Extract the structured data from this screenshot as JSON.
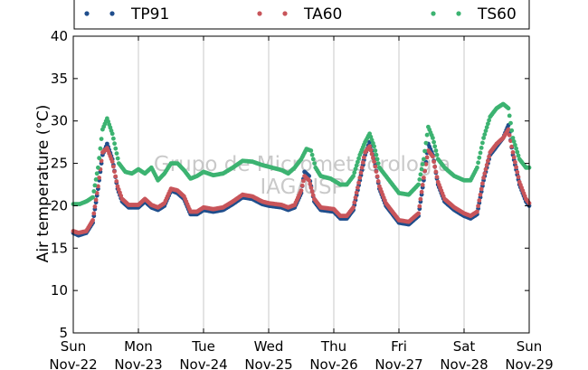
{
  "chart_data": {
    "type": "scatter",
    "ylabel": "Air temperature (°C)",
    "ylim": [
      5,
      40
    ],
    "yticks": [
      5,
      10,
      15,
      20,
      25,
      30,
      35,
      40
    ],
    "xlim": [
      0,
      7
    ],
    "xticks": [
      {
        "x": 0,
        "day": "Sun",
        "date": "Nov-22"
      },
      {
        "x": 1,
        "day": "Mon",
        "date": "Nov-23"
      },
      {
        "x": 2,
        "day": "Tue",
        "date": "Nov-24"
      },
      {
        "x": 3,
        "day": "Wed",
        "date": "Nov-25"
      },
      {
        "x": 4,
        "day": "Thu",
        "date": "Nov-26"
      },
      {
        "x": 5,
        "day": "Fri",
        "date": "Nov-27"
      },
      {
        "x": 6,
        "day": "Sat",
        "date": "Nov-28"
      },
      {
        "x": 7,
        "day": "Sun",
        "date": "Nov-29"
      }
    ],
    "grid": "vertical",
    "legend_position": "top",
    "watermark": [
      "Grupo de Micrometeorologia",
      "IAG/USP"
    ],
    "series": [
      {
        "name": "TP91",
        "color": "#1f4e8c",
        "points": [
          [
            0,
            16.8
          ],
          [
            0.08,
            16.5
          ],
          [
            0.2,
            16.8
          ],
          [
            0.3,
            18.0
          ],
          [
            0.38,
            22.0
          ],
          [
            0.45,
            26.0
          ],
          [
            0.52,
            27.3
          ],
          [
            0.6,
            25.5
          ],
          [
            0.68,
            22.0
          ],
          [
            0.75,
            20.5
          ],
          [
            0.85,
            19.8
          ],
          [
            1.0,
            19.8
          ],
          [
            1.1,
            20.5
          ],
          [
            1.2,
            19.8
          ],
          [
            1.3,
            19.5
          ],
          [
            1.4,
            20.0
          ],
          [
            1.5,
            21.8
          ],
          [
            1.6,
            21.5
          ],
          [
            1.7,
            20.8
          ],
          [
            1.8,
            19.0
          ],
          [
            1.9,
            19.0
          ],
          [
            2.0,
            19.5
          ],
          [
            2.15,
            19.3
          ],
          [
            2.3,
            19.5
          ],
          [
            2.45,
            20.2
          ],
          [
            2.6,
            21.0
          ],
          [
            2.75,
            20.8
          ],
          [
            2.9,
            20.2
          ],
          [
            3.0,
            20.0
          ],
          [
            3.2,
            19.8
          ],
          [
            3.3,
            19.5
          ],
          [
            3.4,
            19.8
          ],
          [
            3.5,
            21.5
          ],
          [
            3.55,
            24.0
          ],
          [
            3.62,
            23.5
          ],
          [
            3.7,
            20.5
          ],
          [
            3.8,
            19.5
          ],
          [
            4.0,
            19.3
          ],
          [
            4.1,
            18.5
          ],
          [
            4.2,
            18.5
          ],
          [
            4.3,
            19.5
          ],
          [
            4.4,
            23.0
          ],
          [
            4.48,
            26.0
          ],
          [
            4.55,
            27.5
          ],
          [
            4.62,
            25.5
          ],
          [
            4.7,
            22.0
          ],
          [
            4.8,
            20.0
          ],
          [
            4.9,
            19.0
          ],
          [
            5.0,
            18.0
          ],
          [
            5.15,
            17.8
          ],
          [
            5.3,
            18.8
          ],
          [
            5.38,
            23.0
          ],
          [
            5.45,
            27.3
          ],
          [
            5.52,
            26.0
          ],
          [
            5.6,
            22.5
          ],
          [
            5.7,
            20.5
          ],
          [
            5.85,
            19.5
          ],
          [
            6.0,
            18.8
          ],
          [
            6.1,
            18.5
          ],
          [
            6.2,
            19.0
          ],
          [
            6.3,
            23.0
          ],
          [
            6.4,
            26.0
          ],
          [
            6.5,
            27.0
          ],
          [
            6.6,
            28.0
          ],
          [
            6.68,
            29.5
          ],
          [
            6.75,
            26.0
          ],
          [
            6.85,
            22.5
          ],
          [
            6.95,
            20.5
          ],
          [
            7.0,
            20.0
          ]
        ]
      },
      {
        "name": "TA60",
        "color": "#c8555a",
        "points": [
          [
            0,
            17.0
          ],
          [
            0.08,
            16.8
          ],
          [
            0.2,
            17.0
          ],
          [
            0.3,
            18.3
          ],
          [
            0.38,
            22.3
          ],
          [
            0.45,
            26.3
          ],
          [
            0.52,
            26.8
          ],
          [
            0.6,
            25.2
          ],
          [
            0.68,
            22.3
          ],
          [
            0.75,
            20.8
          ],
          [
            0.85,
            20.1
          ],
          [
            1.0,
            20.1
          ],
          [
            1.1,
            20.8
          ],
          [
            1.2,
            20.1
          ],
          [
            1.3,
            19.8
          ],
          [
            1.4,
            20.3
          ],
          [
            1.5,
            22.0
          ],
          [
            1.6,
            21.8
          ],
          [
            1.7,
            21.1
          ],
          [
            1.8,
            19.3
          ],
          [
            1.9,
            19.3
          ],
          [
            2.0,
            19.8
          ],
          [
            2.15,
            19.6
          ],
          [
            2.3,
            19.8
          ],
          [
            2.45,
            20.5
          ],
          [
            2.6,
            21.3
          ],
          [
            2.75,
            21.1
          ],
          [
            2.9,
            20.5
          ],
          [
            3.0,
            20.3
          ],
          [
            3.2,
            20.1
          ],
          [
            3.3,
            19.8
          ],
          [
            3.4,
            20.1
          ],
          [
            3.5,
            21.8
          ],
          [
            3.55,
            23.5
          ],
          [
            3.62,
            23.0
          ],
          [
            3.7,
            20.8
          ],
          [
            3.8,
            19.8
          ],
          [
            4.0,
            19.6
          ],
          [
            4.1,
            18.8
          ],
          [
            4.2,
            18.8
          ],
          [
            4.3,
            19.8
          ],
          [
            4.4,
            23.3
          ],
          [
            4.48,
            26.3
          ],
          [
            4.55,
            27.0
          ],
          [
            4.62,
            25.2
          ],
          [
            4.7,
            22.3
          ],
          [
            4.8,
            20.3
          ],
          [
            4.9,
            19.3
          ],
          [
            5.0,
            18.3
          ],
          [
            5.15,
            18.1
          ],
          [
            5.3,
            19.1
          ],
          [
            5.38,
            23.3
          ],
          [
            5.45,
            26.5
          ],
          [
            5.52,
            25.8
          ],
          [
            5.6,
            22.8
          ],
          [
            5.7,
            20.8
          ],
          [
            5.85,
            19.8
          ],
          [
            6.0,
            19.1
          ],
          [
            6.1,
            18.8
          ],
          [
            6.2,
            19.3
          ],
          [
            6.3,
            23.3
          ],
          [
            6.4,
            26.3
          ],
          [
            6.5,
            27.3
          ],
          [
            6.6,
            28.0
          ],
          [
            6.68,
            29.0
          ],
          [
            6.75,
            26.3
          ],
          [
            6.85,
            22.8
          ],
          [
            6.95,
            20.8
          ],
          [
            7.0,
            20.3
          ]
        ]
      },
      {
        "name": "TS60",
        "color": "#3cb371",
        "points": [
          [
            0,
            20.2
          ],
          [
            0.1,
            20.2
          ],
          [
            0.2,
            20.5
          ],
          [
            0.3,
            21.0
          ],
          [
            0.38,
            24.5
          ],
          [
            0.45,
            29.0
          ],
          [
            0.52,
            30.3
          ],
          [
            0.6,
            28.5
          ],
          [
            0.7,
            25.0
          ],
          [
            0.8,
            24.0
          ],
          [
            0.9,
            23.8
          ],
          [
            1.0,
            24.3
          ],
          [
            1.1,
            23.8
          ],
          [
            1.2,
            24.5
          ],
          [
            1.3,
            23.0
          ],
          [
            1.4,
            23.8
          ],
          [
            1.5,
            25.0
          ],
          [
            1.6,
            25.0
          ],
          [
            1.7,
            24.2
          ],
          [
            1.8,
            23.2
          ],
          [
            1.9,
            23.5
          ],
          [
            2.0,
            24.0
          ],
          [
            2.15,
            23.6
          ],
          [
            2.3,
            23.8
          ],
          [
            2.45,
            24.5
          ],
          [
            2.6,
            25.3
          ],
          [
            2.75,
            25.2
          ],
          [
            2.9,
            24.8
          ],
          [
            3.05,
            24.5
          ],
          [
            3.2,
            24.2
          ],
          [
            3.3,
            23.8
          ],
          [
            3.4,
            24.5
          ],
          [
            3.5,
            25.5
          ],
          [
            3.58,
            26.7
          ],
          [
            3.65,
            26.5
          ],
          [
            3.72,
            24.5
          ],
          [
            3.8,
            23.5
          ],
          [
            3.95,
            23.2
          ],
          [
            4.1,
            22.5
          ],
          [
            4.2,
            22.5
          ],
          [
            4.3,
            23.5
          ],
          [
            4.4,
            26.0
          ],
          [
            4.48,
            27.5
          ],
          [
            4.55,
            28.5
          ],
          [
            4.62,
            27.0
          ],
          [
            4.7,
            24.5
          ],
          [
            4.8,
            23.5
          ],
          [
            4.9,
            22.5
          ],
          [
            5.0,
            21.5
          ],
          [
            5.15,
            21.3
          ],
          [
            5.3,
            22.5
          ],
          [
            5.38,
            25.5
          ],
          [
            5.45,
            29.3
          ],
          [
            5.52,
            28.0
          ],
          [
            5.6,
            25.5
          ],
          [
            5.7,
            24.5
          ],
          [
            5.85,
            23.5
          ],
          [
            6.0,
            23.0
          ],
          [
            6.1,
            23.0
          ],
          [
            6.2,
            24.5
          ],
          [
            6.3,
            28.0
          ],
          [
            6.4,
            30.5
          ],
          [
            6.5,
            31.5
          ],
          [
            6.6,
            32.0
          ],
          [
            6.68,
            31.5
          ],
          [
            6.75,
            28.0
          ],
          [
            6.85,
            25.5
          ],
          [
            6.95,
            24.5
          ],
          [
            7.0,
            24.5
          ]
        ]
      }
    ]
  }
}
